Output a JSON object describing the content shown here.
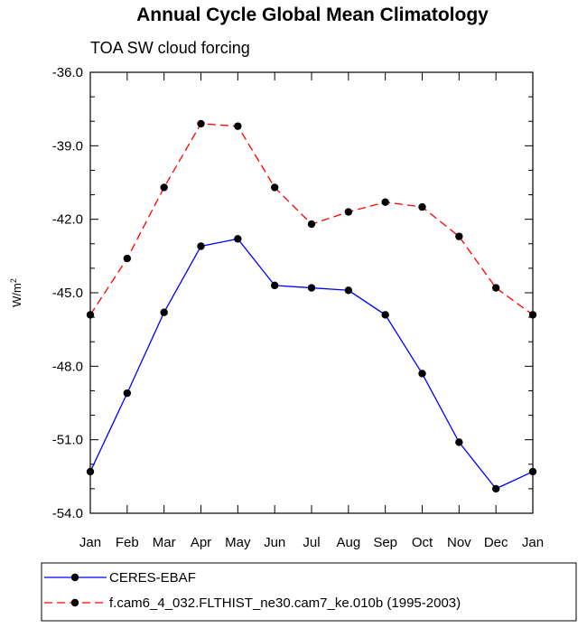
{
  "chart_data": {
    "type": "line",
    "title": "Annual Cycle Global Mean Climatology",
    "subtitle": "TOA SW cloud forcing",
    "ylabel": "W/m",
    "ylabel_superscript": "2",
    "categories": [
      "Jan",
      "Feb",
      "Mar",
      "Apr",
      "May",
      "Jun",
      "Jul",
      "Aug",
      "Sep",
      "Oct",
      "Nov",
      "Dec",
      "Jan"
    ],
    "ylim": [
      -54.0,
      -36.0
    ],
    "yticks": [
      -36.0,
      -39.0,
      -42.0,
      -45.0,
      -48.0,
      -51.0,
      -54.0
    ],
    "ytick_labels": [
      "-36.0",
      "-39.0",
      "-42.0",
      "-45.0",
      "-48.0",
      "-51.0",
      "-54.0"
    ],
    "series": [
      {
        "name": "CERES-EBAF",
        "color": "#0000ff",
        "dash": "solid",
        "values": [
          -52.3,
          -49.1,
          -45.8,
          -43.1,
          -42.8,
          -44.7,
          -44.8,
          -44.9,
          -45.9,
          -48.3,
          -51.1,
          -53.0,
          -52.3
        ]
      },
      {
        "name": "f.cam6_4_032.FLTHIST_ne30.cam7_ke.010b (1995-2003)",
        "color": "#ff0000",
        "dash": "dashed",
        "values": [
          -45.9,
          -43.6,
          -40.7,
          -38.1,
          -38.2,
          -40.7,
          -42.2,
          -41.7,
          -41.3,
          -41.5,
          -42.7,
          -44.8,
          -45.9
        ]
      }
    ]
  }
}
